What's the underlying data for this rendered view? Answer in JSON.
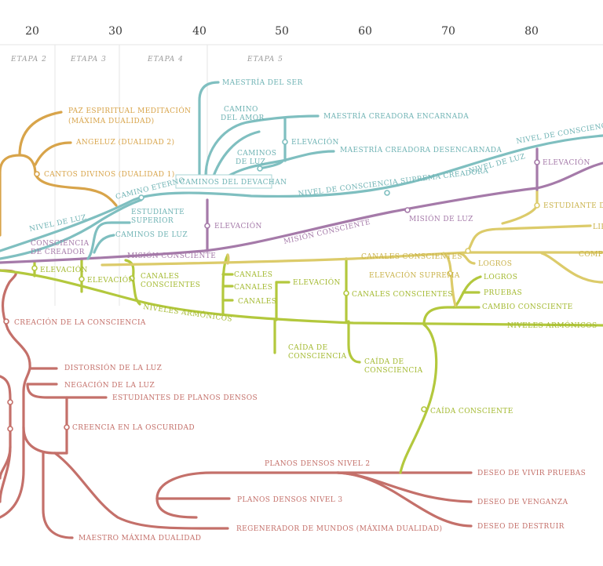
{
  "palette": {
    "orange": "#d8a44a",
    "teal": "#7fbfc0",
    "purple": "#a57aa9",
    "yellow": "#dccb6a",
    "lime": "#b3c83d",
    "red": "#c4706a",
    "guides": "#e6e6e6"
  },
  "axis": {
    "ticks": [
      "20",
      "30",
      "40",
      "50",
      "60",
      "70",
      "80"
    ]
  },
  "stages": [
    "ETAPA 2",
    "ETAPA 3",
    "ETAPA 4",
    "ETAPA 5"
  ],
  "labels": {
    "orange": {
      "paz": "PAZ ESPIRITUAL MEDITACIÓN",
      "paz2": "(MÁXIMA DUALIDAD)",
      "angeluz": "ANGELUZ (DUALIDAD 2)",
      "cantos": "CANTOS DIVINOS (DUALIDAD 1)"
    },
    "teal": {
      "maestria_ser": "MAESTRÍA DEL SER",
      "camino_amor_1": "CAMINO",
      "camino_amor_2": "DEL AMOR",
      "maestria_encarnada": "MAESTRÍA CREADORA ENCARNADA",
      "elevacion": "ELEVACIÓN",
      "caminos_luz_1": "CAMINOS",
      "caminos_luz_2": "DE LUZ",
      "maestria_desencarnada": "MAESTRÍA CREADORA DESENCARNADA",
      "nivel_consciencia": "NIVEL DE CONSCIENCIA",
      "nivel_luz_right": "NIVEL DE LUZ",
      "suprema_creadora": "NIVEL DE CONSCIENCIA SUPREMA CREADORA",
      "caminos_devachan": "CAMINOS DEL DEVACHAN",
      "camino_eterno": "CAMINO ETERNO",
      "estudiante_superior_1": "ESTUDIANTE",
      "estudiante_superior_2": "SUPERIOR",
      "nivel_luz_left": "NIVEL DE LUZ",
      "caminos_luz_low": "CAMINOS DE LUZ"
    },
    "purple": {
      "elevacion_right": "ELEVACIÓN",
      "estudiante_right": "ESTUDIANTE DE",
      "mision_luz": "MISIÓN DE LUZ",
      "elevacion_mid": "ELEVACIÓN",
      "mision_consciente_1": "MISIÓN CONSCIENTE",
      "mision_consciente_2": "MISIÓN CONSCIENTE",
      "consciencia_creador_1": "CONSCIENCIA",
      "consciencia_creador_2": "DE CREADOR"
    },
    "yellow": {
      "canales_conscientes": "CANALES CONSCIENTES",
      "lib": "LIB",
      "comp": "COMP",
      "logros": "LOGROS",
      "elevacion_suprema": "ELEVACIÓN SUPREMA"
    },
    "lime": {
      "elevacion_a": "ELEVACIÓN",
      "elevacion_b": "ELEVACIÓN",
      "canales_conscientes_1": "CANALES",
      "canales_conscientes_2": "CONSCIENTES",
      "canales_1": "CANALES",
      "canales_2": "CANALES",
      "canales_3": "CANALES",
      "elevacion_c": "ELEVACIÓN",
      "canales_conscientes_mid": "CANALES CONSCIENTES",
      "logros": "LOGROS",
      "pruebas": "PRUEBAS",
      "cambio_consciente": "CAMBIO CONSCIENTE",
      "niveles_armonicos_left": "NIVELES ARMÓNICOS",
      "niveles_armonicos_right": "NIVELES ARMÓNICOS",
      "caida_1a": "CAÍDA DE",
      "caida_1b": "CONSCIENCIA",
      "caida_2a": "CAÍDA DE",
      "caida_2b": "CONSCIENCIA",
      "caida_consciente": "CAÍDA CONSCIENTE"
    },
    "red": {
      "creacion": "CREACIÓN DE LA CONSCIENCIA",
      "distorsion": "DISTORSIÓN DE LA LUZ",
      "negacion": "NEGACIÓN DE LA LUZ",
      "estudiantes_densos": "ESTUDIANTES DE PLANOS DENSOS",
      "creencia": "CREENCIA EN LA OSCURIDAD",
      "planos_2": "PLANOS DENSOS NIVEL 2",
      "planos_3": "PLANOS DENSOS NIVEL 3",
      "regenerador": "REGENERADOR DE MUNDOS  (MÁXIMA DUALIDAD)",
      "maestro": "MAESTRO MÁXIMA DUALIDAD",
      "deseo_pruebas": "DESEO DE VIVIR PRUEBAS",
      "deseo_venganza": "DESEO DE VENGANZA",
      "deseo_destruir": "DESEO DE DESTRUIR"
    }
  }
}
